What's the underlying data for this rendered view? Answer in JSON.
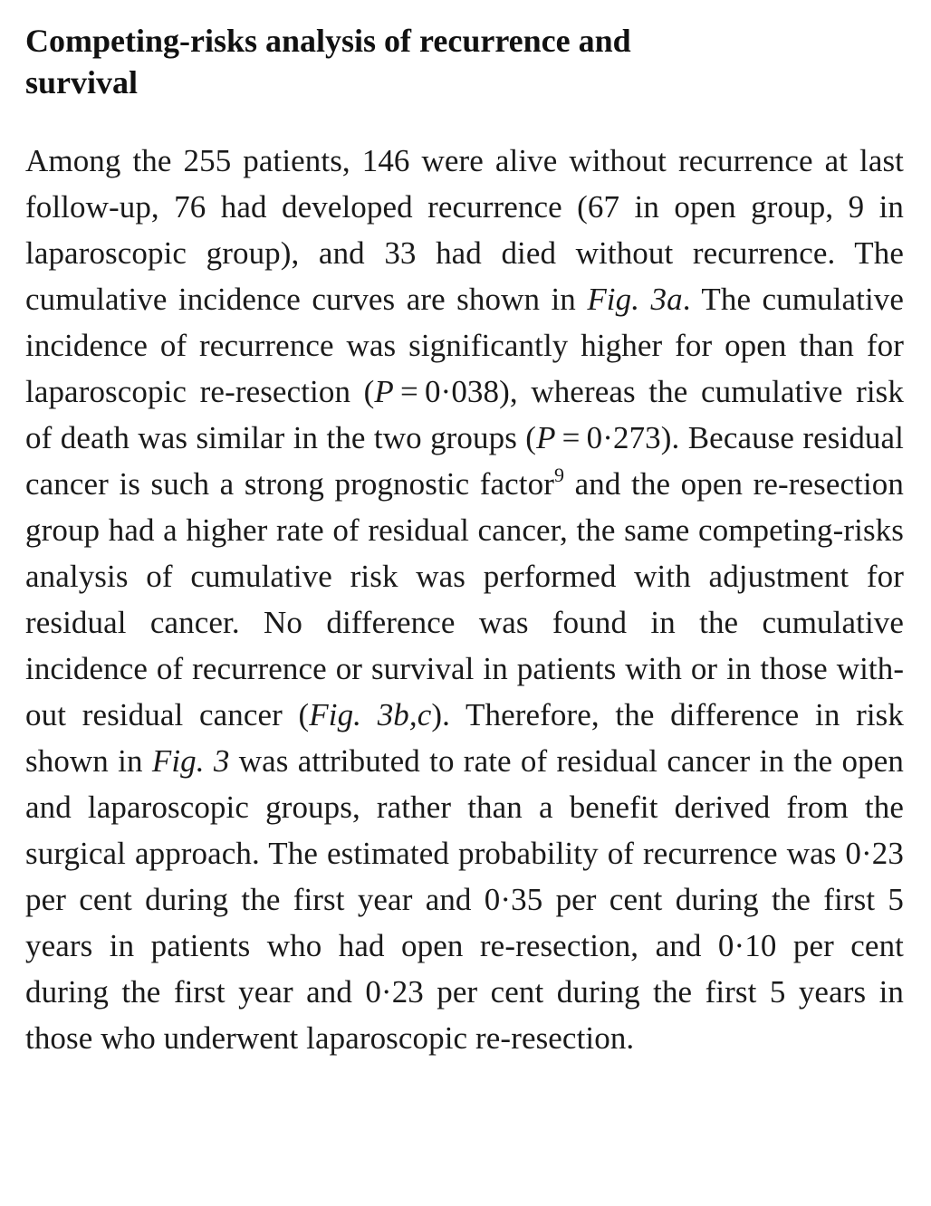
{
  "section": {
    "heading": "Competing-risks analysis of recurrence and survival"
  },
  "paragraph": {
    "s1": "Among the 255 patients, 146 were alive without recur­rence at last follow-up, 76 had developed recurrence (67 in open group, 9 in laparoscopic group), and 33 had died without recurrence. The cumulative incidence curves are shown in ",
    "ref_fig3a": "Fig. 3a",
    "s2": ". The cumulative incidence of recurrence was significantly higher for open than for laparoscopic re-resection (",
    "p_italic_1": "P",
    "s3": " = 0·038), whereas the cumulative risk of death was similar in the two groups (",
    "p_italic_2": "P",
    "s4": " = 0·273). Because residual cancer is such a strong prognostic factor",
    "citation": "9",
    "s5": " and the open re-resection group had a higher rate of resid­ual cancer, the same competing-risks analysis of cumulative risk was performed with adjustment for residual cancer. No difference was found in the cumulative incidence of recurrence or survival in patients with or in those with­out residual cancer (",
    "ref_fig3bc": "Fig. 3b,c",
    "s6": "). Therefore, the difference in risk shown in ",
    "ref_fig3": "Fig. 3",
    "s7": " was attributed to rate of residual cancer in the open and laparoscopic groups, rather than a benefit derived from the surgical approach. The estimated proba­bility of recurrence was 0·23 per cent during the first year and 0·35 per cent during the first 5 years in patients who had open re-resection, and 0·10 per cent during the first year and 0·23 per cent during the first 5 years in those who underwent laparoscopic re-resection."
  }
}
